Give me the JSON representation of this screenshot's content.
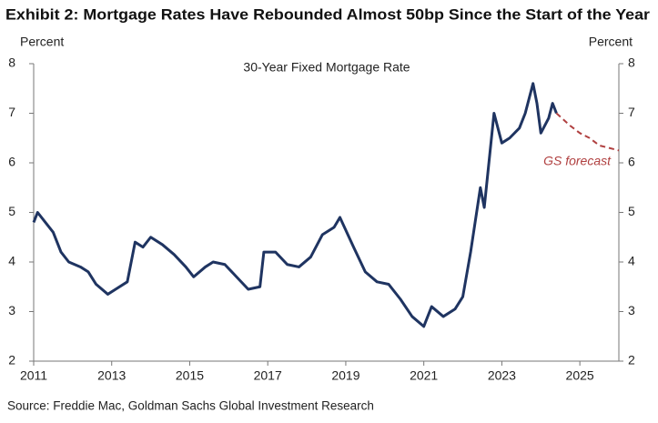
{
  "chart_data": {
    "type": "line",
    "title": "Exhibit 2: Mortgage Rates Have Rebounded Almost 50bp Since the Start of the Year",
    "y_label": "Percent",
    "y2_label": "Percent",
    "source": "Source: Freddie Mac, Goldman Sachs Global Investment Research",
    "xlim": [
      2011,
      2026
    ],
    "xticks": [
      2011,
      2013,
      2015,
      2017,
      2019,
      2021,
      2023,
      2025
    ],
    "ylim": [
      2,
      8
    ],
    "yticks": [
      2,
      3,
      4,
      5,
      6,
      7,
      8
    ],
    "y2lim": [
      2,
      8
    ],
    "y2ticks": [
      2,
      3,
      4,
      5,
      6,
      7,
      8
    ],
    "series": [
      {
        "name": "30-Year Fixed Mortgage Rate",
        "color": "#1f3461",
        "dashed": false,
        "x": [
          2011.0,
          2011.1,
          2011.3,
          2011.5,
          2011.7,
          2011.9,
          2012.2,
          2012.4,
          2012.6,
          2012.9,
          2013.1,
          2013.4,
          2013.6,
          2013.8,
          2014.0,
          2014.3,
          2014.6,
          2014.9,
          2015.1,
          2015.4,
          2015.6,
          2015.9,
          2016.2,
          2016.5,
          2016.8,
          2016.9,
          2017.2,
          2017.5,
          2017.8,
          2018.1,
          2018.4,
          2018.7,
          2018.85,
          2019.2,
          2019.5,
          2019.8,
          2020.1,
          2020.4,
          2020.7,
          2021.0,
          2021.2,
          2021.5,
          2021.8,
          2022.0,
          2022.2,
          2022.45,
          2022.55,
          2022.8,
          2023.0,
          2023.2,
          2023.45,
          2023.6,
          2023.8,
          2023.9,
          2024.0,
          2024.2,
          2024.3,
          2024.4
        ],
        "values": [
          4.8,
          5.0,
          4.8,
          4.6,
          4.2,
          4.0,
          3.9,
          3.8,
          3.55,
          3.35,
          3.45,
          3.6,
          4.4,
          4.3,
          4.5,
          4.35,
          4.15,
          3.9,
          3.7,
          3.9,
          4.0,
          3.95,
          3.7,
          3.45,
          3.5,
          4.2,
          4.2,
          3.95,
          3.9,
          4.1,
          4.55,
          4.7,
          4.9,
          4.3,
          3.8,
          3.6,
          3.55,
          3.25,
          2.9,
          2.7,
          3.1,
          2.9,
          3.05,
          3.3,
          4.2,
          5.5,
          5.1,
          7.0,
          6.4,
          6.5,
          6.7,
          7.0,
          7.6,
          7.2,
          6.6,
          6.9,
          7.2,
          7.0
        ]
      },
      {
        "name": "GS forecast",
        "color": "#b04040",
        "dashed": true,
        "x": [
          2024.4,
          2024.75,
          2025.0,
          2025.25,
          2025.5,
          2025.75,
          2026.0
        ],
        "values": [
          7.0,
          6.75,
          6.6,
          6.5,
          6.35,
          6.3,
          6.25
        ]
      }
    ]
  }
}
